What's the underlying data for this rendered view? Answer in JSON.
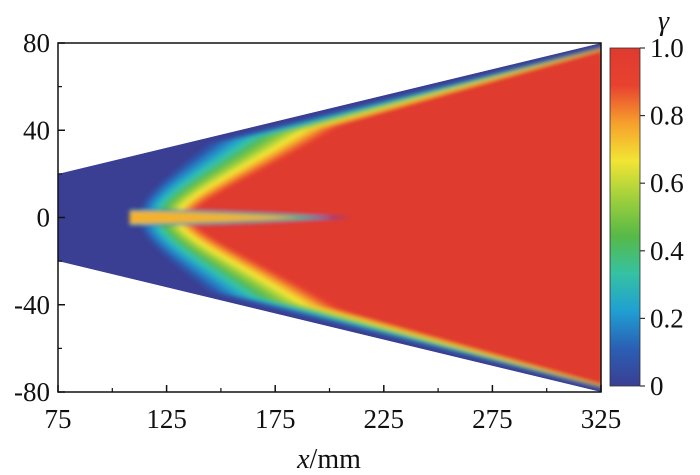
{
  "chart_data": {
    "type": "heatmap",
    "title": "",
    "xlabel": {
      "var": "x",
      "unit": "/mm"
    },
    "ylabel": "",
    "xlim": [
      75,
      325
    ],
    "ylim": [
      -80,
      80
    ],
    "x_ticks": [
      "75",
      "125",
      "175",
      "225",
      "275",
      "325"
    ],
    "y_ticks": [
      "80",
      "40",
      "0",
      "-40",
      "-80"
    ],
    "colorbar": {
      "label": "γ",
      "range": [
        0,
        1
      ],
      "ticks": [
        "1.0",
        "0.8",
        "0.6",
        "0.4",
        "0.2",
        "0"
      ],
      "colormap": [
        "#3a3f93",
        "#2a5fb4",
        "#1fa0d2",
        "#35c2a2",
        "#57b947",
        "#9fd03c",
        "#f2e534",
        "#f6a02c",
        "#e8422f",
        "#df3a2f"
      ]
    },
    "domain": {
      "description": "wedge-shaped region widening downstream",
      "inlet_x": 75,
      "inlet_half_width": 20,
      "outlet_x": 325,
      "outlet_half_width": 80
    },
    "field_features": {
      "background_value": 0,
      "core_value": 1.0,
      "mixing_layer_start_x": 110,
      "central_spike_tip_x": 210,
      "spike_half_width": 3
    }
  }
}
